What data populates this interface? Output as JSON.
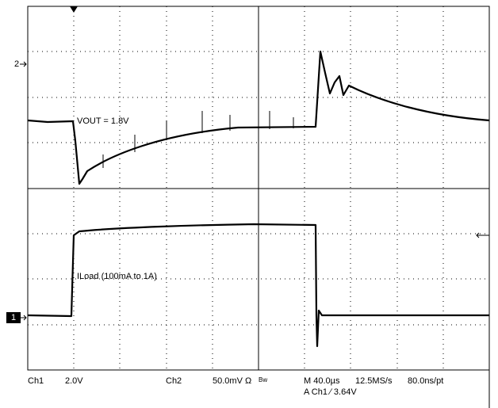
{
  "scope": {
    "vout_label": "VOUT = 1.8V",
    "iload_label": "ILoad (100mA to 1A)",
    "ch2_marker": "2",
    "ch1_marker": "1",
    "status": {
      "ch1": "Ch1",
      "ch1_scale": "2.0V",
      "ch2": "Ch2",
      "ch2_scale": "50.0mV Ω",
      "bw": "Bw",
      "timebase": "M 40.0µs",
      "sample_rate": "12.5MS/s",
      "resolution": "80.0ns/pt",
      "trigger": "A  Ch1  ∕  3.64V"
    }
  }
}
